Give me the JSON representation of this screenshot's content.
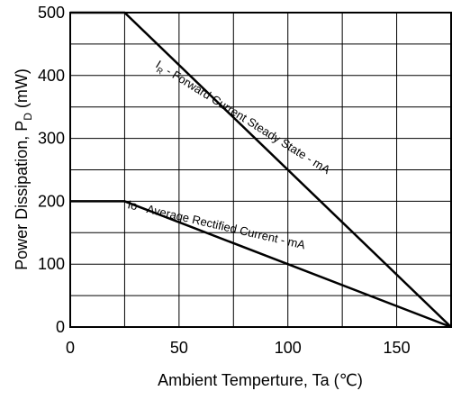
{
  "chart_data": {
    "type": "line",
    "title": "",
    "xlabel": "Ambient Temperture, Ta (℃)",
    "ylabel": {
      "main": "Power Dissipation, P",
      "sub": "D",
      "unit": " (mW)"
    },
    "xlim": [
      0,
      175
    ],
    "ylim": [
      0,
      500
    ],
    "x_ticks": [
      0,
      50,
      100,
      150
    ],
    "x_tick_labels": [
      "0",
      "50",
      "100",
      "150"
    ],
    "x_grid": [
      0,
      25,
      50,
      75,
      100,
      125,
      150,
      175
    ],
    "y_ticks": [
      0,
      100,
      200,
      300,
      400,
      500
    ],
    "y_tick_labels": [
      "0",
      "100",
      "200",
      "300",
      "400",
      "500"
    ],
    "y_grid": [
      0,
      50,
      100,
      150,
      200,
      250,
      300,
      350,
      400,
      450,
      500
    ],
    "grid": true,
    "series": [
      {
        "label_main": "I",
        "label_sub": "R",
        "label_rest": " - Forward Current Steady State - mA",
        "points": [
          [
            0,
            500
          ],
          [
            25,
            500
          ],
          [
            175,
            0
          ]
        ],
        "color": "#000000"
      },
      {
        "label_main": "Io - Average Rectified Current - mA",
        "points": [
          [
            0,
            200
          ],
          [
            25,
            200
          ],
          [
            175,
            0
          ]
        ],
        "color": "#000000"
      }
    ]
  }
}
